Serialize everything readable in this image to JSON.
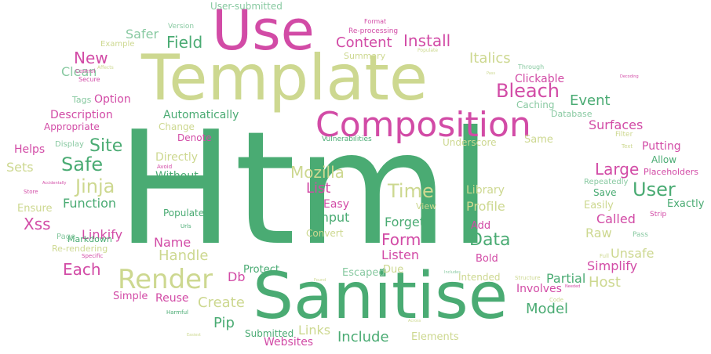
{
  "colors": {
    "green": "#4aab73",
    "pink": "#d24ba6",
    "olive": "#cdd890",
    "mint": "#88c9a1"
  },
  "words": [
    {
      "text": "Html",
      "color": "#4aab73"
    },
    {
      "text": "Template",
      "color": "#cdd890"
    },
    {
      "text": "Sanitise",
      "color": "#4aab73"
    },
    {
      "text": "Use",
      "color": "#d24ba6"
    },
    {
      "text": "Composition",
      "color": "#d24ba6"
    },
    {
      "text": "Render",
      "color": "#cdd890"
    },
    {
      "text": "Bleach",
      "color": "#d24ba6"
    },
    {
      "text": "Jinja",
      "color": "#cdd890"
    },
    {
      "text": "Safe",
      "color": "#4aab73"
    },
    {
      "text": "Site",
      "color": "#4aab73"
    },
    {
      "text": "User",
      "color": "#4aab73"
    },
    {
      "text": "Large",
      "color": "#d24ba6"
    },
    {
      "text": "Time",
      "color": "#cdd890"
    },
    {
      "text": "Data",
      "color": "#4aab73"
    },
    {
      "text": "Form",
      "color": "#d24ba6"
    },
    {
      "text": "Each",
      "color": "#d24ba6"
    },
    {
      "text": "Xss",
      "color": "#d24ba6"
    },
    {
      "text": "Mozilla",
      "color": "#cdd890"
    },
    {
      "text": "New",
      "color": "#d24ba6"
    },
    {
      "text": "Field",
      "color": "#4aab73"
    },
    {
      "text": "Install",
      "color": "#d24ba6"
    },
    {
      "text": "Content",
      "color": "#d24ba6"
    },
    {
      "text": "Safer",
      "color": "#88c9a1"
    },
    {
      "text": "Clean",
      "color": "#88c9a1"
    },
    {
      "text": "Event",
      "color": "#4aab73"
    },
    {
      "text": "Italics",
      "color": "#cdd890"
    },
    {
      "text": "Model",
      "color": "#4aab73"
    },
    {
      "text": "Host",
      "color": "#cdd890"
    },
    {
      "text": "Surfaces",
      "color": "#d24ba6"
    },
    {
      "text": "Called",
      "color": "#d24ba6"
    },
    {
      "text": "Raw",
      "color": "#cdd890"
    },
    {
      "text": "Unsafe",
      "color": "#cdd890"
    },
    {
      "text": "Simplify",
      "color": "#d24ba6"
    },
    {
      "text": "List",
      "color": "#d24ba6"
    },
    {
      "text": "Library",
      "color": "#cdd890"
    },
    {
      "text": "Profile",
      "color": "#cdd890"
    },
    {
      "text": "Forget",
      "color": "#4aab73"
    },
    {
      "text": "Listen",
      "color": "#d24ba6"
    },
    {
      "text": "Input",
      "color": "#4aab73"
    },
    {
      "text": "Easy",
      "color": "#d24ba6"
    },
    {
      "text": "Create",
      "color": "#cdd890"
    },
    {
      "text": "Handle",
      "color": "#cdd890"
    },
    {
      "text": "Name",
      "color": "#d24ba6"
    },
    {
      "text": "Function",
      "color": "#4aab73"
    },
    {
      "text": "Without",
      "color": "#4aab73"
    },
    {
      "text": "Linkify",
      "color": "#d24ba6"
    },
    {
      "text": "Include",
      "color": "#4aab73"
    },
    {
      "text": "Links",
      "color": "#cdd890"
    },
    {
      "text": "Websites",
      "color": "#d24ba6"
    },
    {
      "text": "Pip",
      "color": "#4aab73"
    },
    {
      "text": "Reuse",
      "color": "#d24ba6"
    },
    {
      "text": "Db",
      "color": "#d24ba6"
    },
    {
      "text": "Partial",
      "color": "#4aab73"
    },
    {
      "text": "Involves",
      "color": "#d24ba6"
    },
    {
      "text": "Option",
      "color": "#d24ba6"
    },
    {
      "text": "Description",
      "color": "#d24ba6"
    },
    {
      "text": "Appropriate",
      "color": "#d24ba6"
    },
    {
      "text": "Helps",
      "color": "#d24ba6"
    },
    {
      "text": "Sets",
      "color": "#cdd890"
    },
    {
      "text": "Ensure",
      "color": "#cdd890"
    },
    {
      "text": "Automatically",
      "color": "#4aab73"
    },
    {
      "text": "Change",
      "color": "#cdd890"
    },
    {
      "text": "Denote",
      "color": "#d24ba6"
    },
    {
      "text": "Directly",
      "color": "#cdd890"
    },
    {
      "text": "Clickable",
      "color": "#d24ba6"
    },
    {
      "text": "Caching",
      "color": "#88c9a1"
    },
    {
      "text": "Database",
      "color": "#88c9a1"
    },
    {
      "text": "Same",
      "color": "#cdd890"
    },
    {
      "text": "Putting",
      "color": "#d24ba6"
    },
    {
      "text": "Allow",
      "color": "#4aab73"
    },
    {
      "text": "Placeholders",
      "color": "#d24ba6"
    },
    {
      "text": "Save",
      "color": "#4aab73"
    },
    {
      "text": "Exactly",
      "color": "#4aab73"
    },
    {
      "text": "Easily",
      "color": "#cdd890"
    },
    {
      "text": "Repeatedly",
      "color": "#88c9a1"
    },
    {
      "text": "Populate",
      "color": "#4aab73"
    },
    {
      "text": "Add",
      "color": "#d24ba6"
    },
    {
      "text": "View",
      "color": "#cdd890"
    },
    {
      "text": "Convert",
      "color": "#cdd890"
    },
    {
      "text": "Protect",
      "color": "#4aab73"
    },
    {
      "text": "Escaped",
      "color": "#88c9a1"
    },
    {
      "text": "Due",
      "color": "#cdd890"
    },
    {
      "text": "Bold",
      "color": "#d24ba6"
    },
    {
      "text": "Intended",
      "color": "#cdd890"
    },
    {
      "text": "Submitted",
      "color": "#4aab73"
    },
    {
      "text": "Elements",
      "color": "#cdd890"
    },
    {
      "text": "Simple",
      "color": "#d24ba6"
    },
    {
      "text": "Markdown",
      "color": "#4aab73"
    },
    {
      "text": "Re-rendering",
      "color": "#cdd890"
    },
    {
      "text": "Page",
      "color": "#88c9a1"
    },
    {
      "text": "Underscore",
      "color": "#cdd890"
    },
    {
      "text": "Vulnerabilities",
      "color": "#4aab73"
    },
    {
      "text": "User-submitted",
      "color": "#88c9a1"
    },
    {
      "text": "Summary",
      "color": "#cdd890"
    },
    {
      "text": "Tags",
      "color": "#88c9a1"
    },
    {
      "text": "Display",
      "color": "#88c9a1"
    },
    {
      "text": "Example",
      "color": "#cdd890"
    },
    {
      "text": "Version",
      "color": "#88c9a1"
    },
    {
      "text": "Secure",
      "color": "#d24ba6"
    },
    {
      "text": "Format",
      "color": "#d24ba6"
    },
    {
      "text": "Re-processing",
      "color": "#d24ba6"
    },
    {
      "text": "Through",
      "color": "#88c9a1"
    },
    {
      "text": "Filter",
      "color": "#cdd890"
    },
    {
      "text": "Pass",
      "color": "#88c9a1"
    },
    {
      "text": "Strip",
      "color": "#d24ba6"
    },
    {
      "text": "Avoid",
      "color": "#d24ba6"
    },
    {
      "text": "Store",
      "color": "#d24ba6"
    },
    {
      "text": "Urls",
      "color": "#4aab73"
    },
    {
      "text": "Specific",
      "color": "#d24ba6"
    },
    {
      "text": "Control",
      "color": "#d24ba6"
    },
    {
      "text": "Harmful",
      "color": "#4aab73"
    },
    {
      "text": "Code",
      "color": "#cdd890"
    },
    {
      "text": "Structure",
      "color": "#cdd890"
    },
    {
      "text": "Text",
      "color": "#cdd890"
    },
    {
      "text": "Full",
      "color": "#cdd890"
    },
    {
      "text": "Populate",
      "color": "#cdd890"
    },
    {
      "text": "Affects",
      "color": "#cdd890"
    },
    {
      "text": "Pass",
      "color": "#cdd890"
    },
    {
      "text": "Accidentally",
      "color": "#d24ba6"
    },
    {
      "text": "Decoding",
      "color": "#d24ba6"
    },
    {
      "text": "Needed",
      "color": "#d24ba6"
    },
    {
      "text": "Found",
      "color": "#cdd890"
    },
    {
      "text": "Includes",
      "color": "#88c9a1"
    },
    {
      "text": "Easiest",
      "color": "#cdd890"
    },
    {
      "text": "Across",
      "color": "#cdd890"
    },
    {
      "text": "Layout",
      "color": "#cdd890"
    }
  ]
}
